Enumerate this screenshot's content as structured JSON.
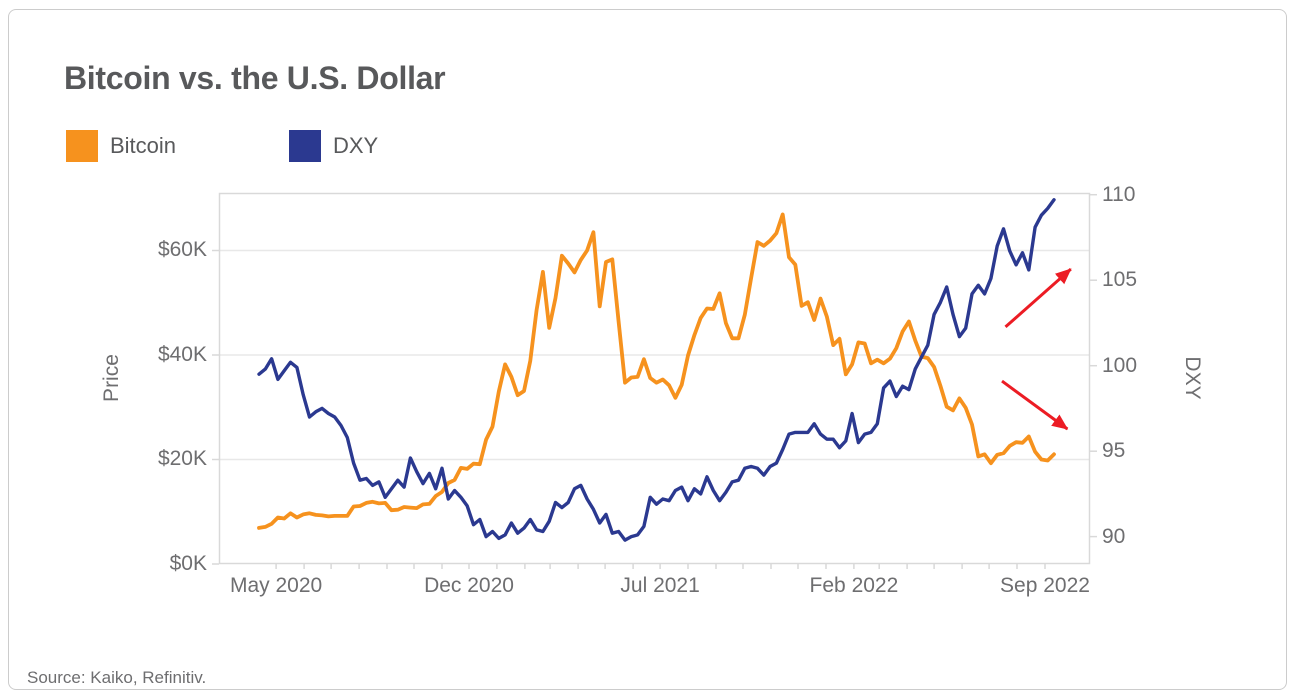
{
  "card": {
    "title": "Bitcoin vs. the U.S. Dollar",
    "source": "Source: Kaiko, Refinitiv."
  },
  "legend": [
    {
      "label": "Bitcoin",
      "color": "#F6921E"
    },
    {
      "label": "DXY",
      "color": "#2B3990"
    }
  ],
  "chart_data": {
    "type": "line",
    "title": "Bitcoin vs. the U.S. Dollar",
    "x_start_date": "2020-04-12",
    "x_interval": "weekly",
    "x_tick_labels": [
      {
        "label": "May 2020",
        "index": 2.71
      },
      {
        "label": "Dec 2020",
        "index": 33.29
      },
      {
        "label": "Jul 2021",
        "index": 63.57
      },
      {
        "label": "Feb 2022",
        "index": 94.29
      },
      {
        "label": "Sep 2022",
        "index": 124.57
      }
    ],
    "x_minor_tick_indices": [
      2.71,
      7.14,
      11.43,
      15.86,
      20.29,
      24.57,
      29.0,
      33.29,
      37.71,
      42.14,
      46.14,
      50.57,
      54.86,
      59.29,
      63.57,
      68.0,
      72.43,
      76.71,
      81.14,
      85.43,
      89.86,
      94.29,
      98.29,
      102.71,
      107.0,
      111.43,
      115.71,
      120.14,
      124.57
    ],
    "left_axis": {
      "label": "Price",
      "unit": "USD thousands",
      "range": [
        0,
        71
      ],
      "grid_values": [
        20,
        40,
        60
      ],
      "ticks": [
        {
          "label": "$0K",
          "value": 0
        },
        {
          "label": "$20K",
          "value": 20
        },
        {
          "label": "$40K",
          "value": 40
        },
        {
          "label": "$60K",
          "value": 60
        }
      ]
    },
    "right_axis": {
      "label": "DXY",
      "range": [
        88.4,
        110.1
      ],
      "ticks": [
        {
          "label": "90",
          "value": 90
        },
        {
          "label": "95",
          "value": 95
        },
        {
          "label": "100",
          "value": 100
        },
        {
          "label": "105",
          "value": 105
        },
        {
          "label": "110",
          "value": 110
        }
      ]
    },
    "grid_color": "#e8e8e8",
    "border_color": "#d9d9d9",
    "series": [
      {
        "name": "Bitcoin",
        "axis": "left",
        "color": "#F6921E",
        "stroke_width": 3.8,
        "values": [
          6.9,
          7.1,
          7.7,
          8.9,
          8.7,
          9.7,
          8.9,
          9.5,
          9.7,
          9.4,
          9.3,
          9.1,
          9.2,
          9.2,
          9.2,
          11.0,
          11.1,
          11.7,
          11.9,
          11.6,
          11.7,
          10.3,
          10.4,
          10.9,
          10.8,
          10.7,
          11.4,
          11.5,
          13.0,
          13.8,
          15.5,
          16.1,
          18.4,
          18.2,
          19.2,
          19.1,
          23.8,
          26.3,
          33.0,
          38.2,
          35.8,
          32.3,
          33.1,
          38.9,
          48.6,
          55.9,
          45.2,
          50.9,
          59.0,
          57.5,
          55.8,
          58.2,
          60.0,
          63.5,
          49.3,
          57.8,
          58.3,
          46.4,
          34.7,
          35.7,
          35.8,
          39.2,
          35.6,
          34.7,
          35.3,
          34.2,
          31.8,
          34.3,
          39.9,
          43.8,
          47.1,
          48.9,
          48.8,
          51.8,
          46.1,
          43.2,
          43.2,
          47.7,
          54.7,
          61.6,
          60.9,
          61.9,
          63.3,
          66.9,
          58.7,
          57.3,
          49.4,
          50.1,
          46.7,
          50.8,
          47.3,
          41.9,
          43.1,
          36.3,
          38.2,
          42.4,
          42.2,
          38.4,
          39.1,
          38.4,
          39.3,
          41.3,
          44.5,
          46.4,
          42.8,
          39.7,
          39.4,
          37.7,
          34.1,
          30.1,
          29.4,
          31.7,
          29.9,
          26.7,
          20.6,
          21.0,
          19.3,
          20.9,
          21.2,
          22.6,
          23.3,
          23.2,
          24.4,
          21.5,
          20.0,
          19.8,
          21.0
        ]
      },
      {
        "name": "DXY",
        "axis": "right",
        "color": "#2B3990",
        "stroke_width": 3.4,
        "values": [
          99.5,
          99.8,
          100.4,
          99.2,
          99.7,
          100.2,
          99.9,
          98.3,
          97.0,
          97.3,
          97.5,
          97.2,
          97.0,
          96.5,
          95.8,
          94.3,
          93.3,
          93.4,
          93.0,
          93.2,
          92.3,
          92.8,
          93.3,
          92.9,
          94.6,
          93.8,
          93.1,
          93.7,
          92.8,
          94.0,
          92.2,
          92.7,
          92.3,
          91.8,
          90.7,
          91.0,
          90.0,
          90.3,
          89.9,
          90.1,
          90.8,
          90.2,
          90.5,
          91.0,
          90.4,
          90.3,
          90.9,
          92.0,
          91.7,
          92.0,
          92.8,
          93.0,
          92.2,
          91.6,
          90.8,
          91.3,
          90.2,
          90.3,
          89.8,
          90.0,
          90.1,
          90.6,
          92.3,
          91.9,
          92.2,
          92.1,
          92.7,
          92.9,
          92.1,
          92.8,
          92.5,
          93.5,
          92.7,
          92.1,
          92.6,
          93.2,
          93.3,
          94.0,
          94.1,
          94.0,
          93.6,
          94.1,
          94.3,
          95.1,
          96.0,
          96.1,
          96.1,
          96.1,
          96.6,
          96.0,
          95.7,
          95.7,
          95.2,
          95.6,
          97.2,
          95.5,
          96.0,
          96.1,
          96.6,
          98.7,
          99.1,
          98.2,
          98.8,
          98.6,
          99.8,
          100.5,
          101.2,
          103.0,
          103.7,
          104.6,
          103.0,
          101.7,
          102.2,
          104.2,
          104.7,
          104.2,
          105.1,
          107.0,
          108.0,
          106.7,
          105.9,
          106.6,
          105.6,
          108.1,
          108.8,
          109.2,
          109.7
        ]
      }
    ],
    "annotations": [
      {
        "type": "arrow",
        "direction": "up-right",
        "color": "#EC1C24",
        "from_frac": [
          0.903,
          0.361
        ],
        "to_frac": [
          0.978,
          0.205
        ]
      },
      {
        "type": "arrow",
        "direction": "down-right",
        "color": "#EC1C24",
        "from_frac": [
          0.899,
          0.507
        ],
        "to_frac": [
          0.974,
          0.636
        ]
      }
    ]
  }
}
